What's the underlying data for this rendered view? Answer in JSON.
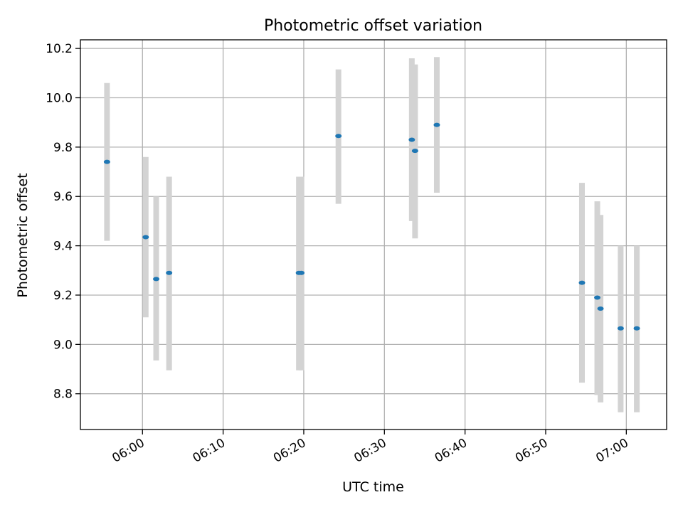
{
  "chart_data": {
    "type": "scatter",
    "title": "Photometric offset variation",
    "xlabel": "UTC time",
    "ylabel": "Photometric offset",
    "x_ticks": [
      "06:00",
      "06:10",
      "06:20",
      "06:30",
      "06:40",
      "06:50",
      "07:00"
    ],
    "x_tick_minutes": [
      360,
      370,
      380,
      390,
      400,
      410,
      420
    ],
    "y_ticks": [
      "8.8",
      "9.0",
      "9.2",
      "9.4",
      "9.6",
      "9.8",
      "10.0",
      "10.2"
    ],
    "y_tick_values": [
      8.8,
      9.0,
      9.2,
      9.4,
      9.6,
      9.8,
      10.0,
      10.2
    ],
    "xlim": [
      "05:52.3",
      "07:05.0"
    ],
    "ylim": [
      8.655,
      10.235
    ],
    "grid": true,
    "colors": {
      "marker": "#1f77b4",
      "errorbar": "#d3d3d3",
      "grid": "#b0b0b0"
    },
    "points": [
      {
        "time": "05:55.6",
        "y": 9.74,
        "ylow": 9.42,
        "yhigh": 10.06
      },
      {
        "time": "06:00.4",
        "y": 9.435,
        "ylow": 9.11,
        "yhigh": 9.76
      },
      {
        "time": "06:01.7",
        "y": 9.265,
        "ylow": 8.935,
        "yhigh": 9.6
      },
      {
        "time": "06:03.3",
        "y": 9.29,
        "ylow": 8.895,
        "yhigh": 9.68
      },
      {
        "time": "06:19.4",
        "y": 9.29,
        "ylow": 8.895,
        "yhigh": 9.68
      },
      {
        "time": "06:19.7",
        "y": 9.29,
        "ylow": 8.895,
        "yhigh": 9.68
      },
      {
        "time": "06:24.3",
        "y": 9.845,
        "ylow": 9.57,
        "yhigh": 10.115
      },
      {
        "time": "06:33.4",
        "y": 9.83,
        "ylow": 9.5,
        "yhigh": 10.16
      },
      {
        "time": "06:33.8",
        "y": 9.785,
        "ylow": 9.43,
        "yhigh": 10.135
      },
      {
        "time": "06:36.5",
        "y": 9.89,
        "ylow": 9.615,
        "yhigh": 10.165
      },
      {
        "time": "06:54.5",
        "y": 9.25,
        "ylow": 8.845,
        "yhigh": 9.655
      },
      {
        "time": "06:56.4",
        "y": 9.19,
        "ylow": 8.795,
        "yhigh": 9.58
      },
      {
        "time": "06:56.8",
        "y": 9.145,
        "ylow": 8.765,
        "yhigh": 9.525
      },
      {
        "time": "06:59.3",
        "y": 9.065,
        "ylow": 8.725,
        "yhigh": 9.4
      },
      {
        "time": "07:01.3",
        "y": 9.065,
        "ylow": 8.725,
        "yhigh": 9.4
      }
    ]
  }
}
